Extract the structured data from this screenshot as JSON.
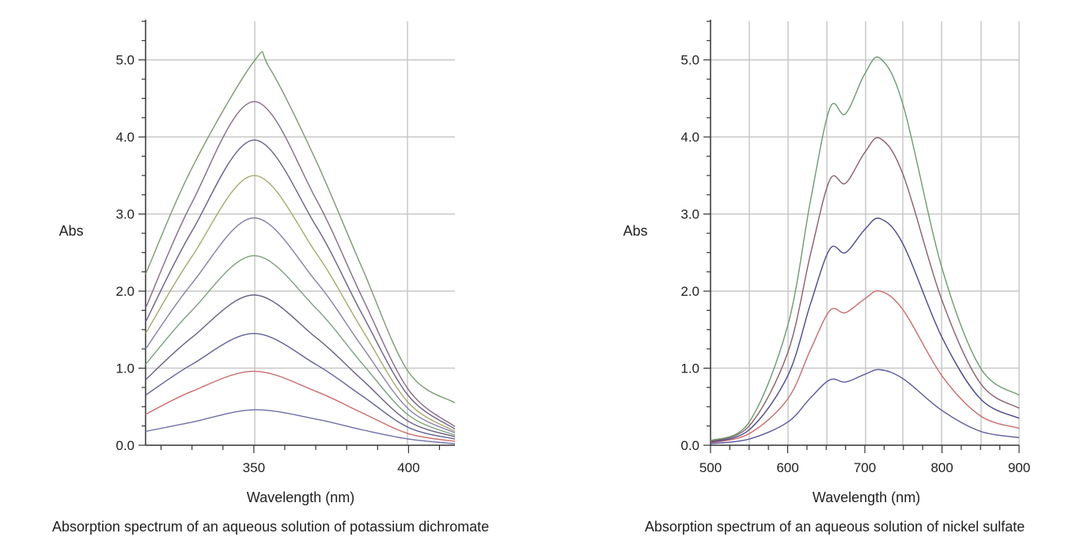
{
  "chart_data": [
    {
      "type": "line",
      "caption": "Absorption spectrum of an aqueous solution of potassium dichromate",
      "xlabel": "Wavelength (nm)",
      "ylabel": "Abs",
      "xlim": [
        315,
        415
      ],
      "ylim": [
        0,
        5.5
      ],
      "xticks": [
        350,
        400
      ],
      "xtick_labels": [
        "350",
        "400"
      ],
      "yticks": [
        0,
        1,
        2,
        3,
        4,
        5
      ],
      "ytick_labels": [
        "0.0",
        "1.0",
        "2.0",
        "3.0",
        "4.0",
        "5.0"
      ],
      "grid": true,
      "legend": "none",
      "series": [
        {
          "color": "#6f6fa8",
          "x": [
            315,
            330,
            350,
            370,
            385,
            400,
            415
          ],
          "y": [
            0.18,
            0.3,
            0.46,
            0.34,
            0.2,
            0.08,
            0.02
          ]
        },
        {
          "color": "#c96c6c",
          "x": [
            315,
            330,
            350,
            370,
            385,
            400,
            415
          ],
          "y": [
            0.4,
            0.7,
            0.96,
            0.7,
            0.42,
            0.15,
            0.05
          ]
        },
        {
          "color": "#5f5f98",
          "x": [
            315,
            330,
            350,
            370,
            385,
            400,
            415
          ],
          "y": [
            0.65,
            1.05,
            1.45,
            1.05,
            0.64,
            0.23,
            0.08
          ]
        },
        {
          "color": "#6a5f80",
          "x": [
            315,
            330,
            350,
            370,
            385,
            400,
            415
          ],
          "y": [
            0.85,
            1.4,
            1.95,
            1.4,
            0.85,
            0.31,
            0.11
          ]
        },
        {
          "color": "#7aa07a",
          "x": [
            315,
            330,
            350,
            370,
            385,
            400,
            415
          ],
          "y": [
            1.05,
            1.75,
            2.46,
            1.78,
            1.06,
            0.39,
            0.13
          ]
        },
        {
          "color": "#8a7fa8",
          "x": [
            315,
            330,
            350,
            370,
            385,
            400,
            415
          ],
          "y": [
            1.25,
            2.1,
            2.95,
            2.13,
            1.28,
            0.47,
            0.16
          ]
        },
        {
          "color": "#a8a86f",
          "x": [
            315,
            330,
            350,
            370,
            385,
            400,
            415
          ],
          "y": [
            1.45,
            2.45,
            3.5,
            2.5,
            1.5,
            0.55,
            0.18
          ]
        },
        {
          "color": "#6a5f88",
          "x": [
            315,
            330,
            350,
            370,
            385,
            400,
            415
          ],
          "y": [
            1.6,
            2.78,
            3.96,
            2.85,
            1.7,
            0.64,
            0.21
          ]
        },
        {
          "color": "#886a88",
          "x": [
            315,
            330,
            350,
            370,
            385,
            400,
            415
          ],
          "y": [
            1.78,
            3.15,
            4.46,
            3.2,
            1.92,
            0.72,
            0.24
          ]
        },
        {
          "color": "#7a9a70",
          "x": [
            315,
            330,
            350,
            355,
            370,
            385,
            400,
            415
          ],
          "y": [
            2.22,
            3.6,
            4.98,
            4.9,
            3.7,
            2.3,
            0.95,
            0.55
          ]
        }
      ]
    },
    {
      "type": "line",
      "caption": "Absorption spectrum of an aqueous solution of nickel sulfate",
      "xlabel": "Wavelength (nm)",
      "ylabel": "Abs",
      "xlim": [
        500,
        900
      ],
      "ylim": [
        0,
        5.5
      ],
      "xticks": [
        500,
        600,
        700,
        800,
        900
      ],
      "xtick_labels": [
        "500",
        "600",
        "700",
        "800",
        "900"
      ],
      "yticks": [
        0,
        1,
        2,
        3,
        4,
        5
      ],
      "ytick_labels": [
        "0.0",
        "1.0",
        "2.0",
        "3.0",
        "4.0",
        "5.0"
      ],
      "grid": true,
      "legend": "none",
      "series": [
        {
          "color": "#5a5aa0",
          "x": [
            500,
            550,
            600,
            630,
            655,
            675,
            700,
            720,
            750,
            800,
            850,
            900
          ],
          "y": [
            0.02,
            0.08,
            0.3,
            0.62,
            0.85,
            0.82,
            0.92,
            0.98,
            0.86,
            0.45,
            0.18,
            0.1
          ]
        },
        {
          "color": "#c96c6c",
          "x": [
            500,
            550,
            600,
            630,
            655,
            675,
            700,
            720,
            750,
            800,
            850,
            900
          ],
          "y": [
            0.03,
            0.15,
            0.6,
            1.25,
            1.75,
            1.72,
            1.9,
            2.0,
            1.75,
            0.9,
            0.38,
            0.22
          ]
        },
        {
          "color": "#4a4a90",
          "x": [
            500,
            550,
            600,
            630,
            655,
            675,
            700,
            720,
            750,
            800,
            850,
            900
          ],
          "y": [
            0.04,
            0.2,
            0.9,
            1.85,
            2.55,
            2.5,
            2.8,
            2.94,
            2.6,
            1.4,
            0.6,
            0.35
          ]
        },
        {
          "color": "#8a5f6a",
          "x": [
            500,
            550,
            600,
            630,
            655,
            675,
            700,
            720,
            750,
            800,
            850,
            900
          ],
          "y": [
            0.05,
            0.25,
            1.2,
            2.5,
            3.45,
            3.4,
            3.8,
            3.98,
            3.5,
            1.88,
            0.8,
            0.48
          ]
        },
        {
          "color": "#6f9a6f",
          "x": [
            500,
            550,
            600,
            630,
            655,
            675,
            700,
            720,
            750,
            800,
            850,
            900
          ],
          "y": [
            0.06,
            0.3,
            1.55,
            3.2,
            4.38,
            4.3,
            4.82,
            5.02,
            4.4,
            2.3,
            1.0,
            0.65
          ]
        }
      ]
    }
  ]
}
